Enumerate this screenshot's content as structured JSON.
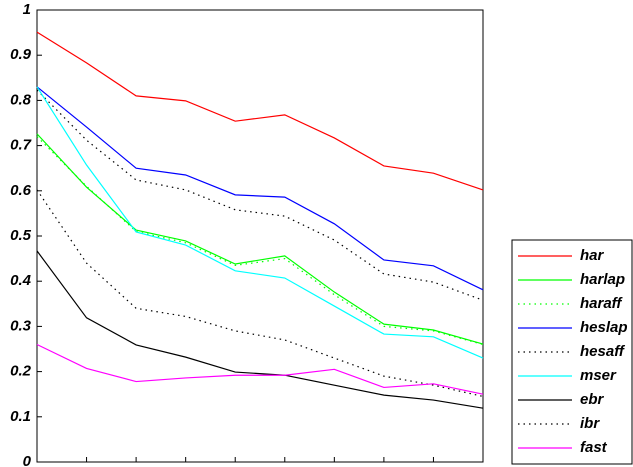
{
  "chart_data": {
    "type": "line",
    "categories": [
      null,
      null,
      null,
      null,
      null,
      null,
      null,
      null,
      null,
      null
    ],
    "ylim": [
      0,
      1
    ],
    "yticks": [
      0,
      0.1,
      0.2,
      0.3,
      0.4,
      0.5,
      0.6,
      0.7,
      0.8,
      0.9,
      1
    ],
    "legend": "right",
    "series": [
      {
        "name": "har",
        "color": "#ff0000",
        "dash": "solid",
        "values": [
          0.951,
          0.883,
          0.81,
          0.799,
          0.754,
          0.768,
          0.717,
          0.655,
          0.639,
          0.602
        ]
      },
      {
        "name": "harlap",
        "color": "#00ff00",
        "dash": "solid",
        "values": [
          0.726,
          0.608,
          0.513,
          0.489,
          0.438,
          0.456,
          0.376,
          0.305,
          0.292,
          0.261
        ]
      },
      {
        "name": "haraff",
        "color": "#00ff00",
        "dash": "dotted",
        "values": [
          0.72,
          0.61,
          0.51,
          0.485,
          0.435,
          0.45,
          0.37,
          0.3,
          0.29,
          0.26
        ]
      },
      {
        "name": "heslap",
        "color": "#0000ff",
        "dash": "solid",
        "values": [
          0.83,
          0.741,
          0.65,
          0.635,
          0.591,
          0.586,
          0.527,
          0.447,
          0.434,
          0.381
        ]
      },
      {
        "name": "hesaff",
        "color": "#000000",
        "dash": "dotted",
        "values": [
          0.823,
          0.712,
          0.624,
          0.602,
          0.558,
          0.544,
          0.491,
          0.416,
          0.398,
          0.358
        ]
      },
      {
        "name": "mser",
        "color": "#00ffff",
        "dash": "solid",
        "values": [
          0.83,
          0.657,
          0.509,
          0.48,
          0.423,
          0.407,
          0.345,
          0.283,
          0.277,
          0.23
        ]
      },
      {
        "name": "ebr",
        "color": "#000000",
        "dash": "solid",
        "values": [
          0.467,
          0.319,
          0.259,
          0.232,
          0.199,
          0.192,
          0.17,
          0.148,
          0.137,
          0.119
        ]
      },
      {
        "name": "ibr",
        "color": "#000000",
        "dash": "dotted",
        "values": [
          0.602,
          0.44,
          0.34,
          0.322,
          0.29,
          0.27,
          0.23,
          0.19,
          0.17,
          0.145
        ]
      },
      {
        "name": "fast",
        "color": "#ff00ff",
        "dash": "solid",
        "values": [
          0.26,
          0.207,
          0.178,
          0.186,
          0.192,
          0.192,
          0.205,
          0.165,
          0.173,
          0.15
        ]
      }
    ]
  }
}
